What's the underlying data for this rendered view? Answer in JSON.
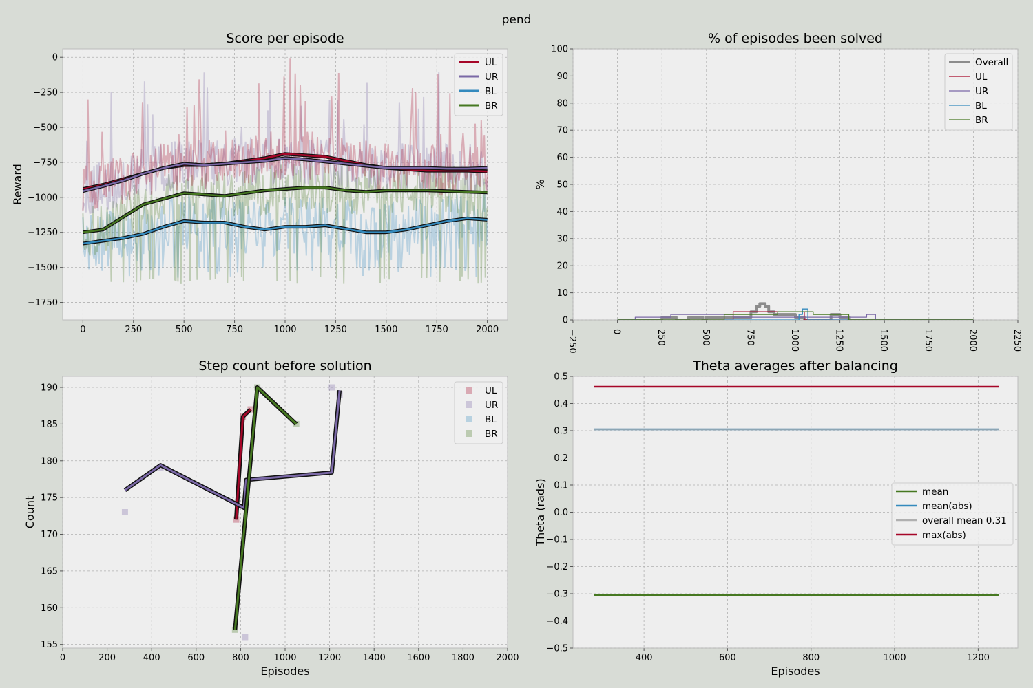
{
  "figure": {
    "suptitle": "pend"
  },
  "colors": {
    "UL": "#a60628",
    "UR": "#7a68a6",
    "BL": "#348abd",
    "BR": "#467821",
    "overall": "#8c8c8c",
    "overall_mean": "#b0b0b0",
    "axes_bg": "#eeeeee",
    "fig_bg": "#d8dcd6",
    "grid": "#b0b0b0"
  },
  "chart_data": [
    {
      "id": "score",
      "type": "line",
      "title": "Score per episode",
      "xlabel": "",
      "ylabel": "Reward",
      "xlim": [
        -100,
        2100
      ],
      "ylim": [
        -1875,
        60
      ],
      "xticks": [
        0,
        250,
        500,
        750,
        1000,
        1250,
        1500,
        1750,
        2000
      ],
      "yticks": [
        0,
        -250,
        -500,
        -750,
        -1000,
        -1250,
        -1500,
        -1750
      ],
      "grid": true,
      "legend": {
        "loc": "upper right",
        "entries": [
          "UL",
          "UR",
          "BL",
          "BR"
        ]
      },
      "series": [
        {
          "name": "UL",
          "x": [
            0,
            100,
            200,
            300,
            400,
            500,
            600,
            700,
            800,
            900,
            1000,
            1100,
            1200,
            1300,
            1400,
            1500,
            1600,
            1700,
            1800,
            1900,
            2000
          ],
          "values": [
            -940,
            -910,
            -870,
            -830,
            -790,
            -770,
            -770,
            -760,
            -740,
            -720,
            -690,
            -700,
            -710,
            -740,
            -770,
            -790,
            -800,
            -810,
            -810,
            -810,
            -815
          ]
        },
        {
          "name": "UR",
          "x": [
            0,
            100,
            200,
            300,
            400,
            500,
            600,
            700,
            800,
            900,
            1000,
            1100,
            1200,
            1300,
            1400,
            1500,
            1600,
            1700,
            1800,
            1900,
            2000
          ],
          "values": [
            -955,
            -920,
            -880,
            -830,
            -790,
            -760,
            -770,
            -760,
            -750,
            -740,
            -720,
            -730,
            -745,
            -760,
            -775,
            -790,
            -790,
            -790,
            -795,
            -795,
            -790
          ]
        },
        {
          "name": "BL",
          "x": [
            0,
            100,
            200,
            300,
            400,
            500,
            600,
            700,
            800,
            900,
            1000,
            1100,
            1200,
            1300,
            1400,
            1500,
            1600,
            1700,
            1800,
            1900,
            2000
          ],
          "values": [
            -1330,
            -1310,
            -1290,
            -1260,
            -1210,
            -1170,
            -1180,
            -1180,
            -1210,
            -1230,
            -1210,
            -1210,
            -1200,
            -1225,
            -1250,
            -1250,
            -1230,
            -1200,
            -1170,
            -1150,
            -1160
          ]
        },
        {
          "name": "BR",
          "x": [
            0,
            100,
            200,
            300,
            400,
            500,
            600,
            700,
            800,
            900,
            1000,
            1100,
            1200,
            1300,
            1400,
            1500,
            1600,
            1700,
            1800,
            1900,
            2000
          ],
          "values": [
            -1250,
            -1230,
            -1140,
            -1050,
            -1010,
            -970,
            -980,
            -990,
            -970,
            -950,
            -940,
            -930,
            -930,
            -950,
            -960,
            -950,
            -950,
            -950,
            -955,
            -960,
            -965
          ]
        }
      ]
    },
    {
      "id": "solved",
      "type": "line",
      "title": "% of episodes been solved",
      "xlabel": "",
      "ylabel": "%",
      "xlim": [
        -250,
        2250
      ],
      "ylim": [
        0,
        100
      ],
      "xticks": [
        -250,
        0,
        250,
        500,
        750,
        1000,
        1250,
        1500,
        1750,
        2000,
        2250
      ],
      "yticks": [
        0,
        10,
        20,
        30,
        40,
        50,
        60,
        70,
        80,
        90,
        100
      ],
      "grid": true,
      "legend": {
        "loc": "upper right",
        "entries": [
          "Overall",
          "UL",
          "UR",
          "BL",
          "BR"
        ]
      },
      "series": [
        {
          "name": "Overall",
          "x": [
            0,
            240,
            250,
            330,
            400,
            480,
            500,
            700,
            750,
            780,
            800,
            830,
            850,
            880,
            900,
            1000,
            1050,
            1200,
            1250,
            1300,
            2000
          ],
          "values": [
            0,
            0,
            1,
            0,
            1,
            0,
            1,
            1,
            3,
            5,
            6,
            5,
            3,
            2,
            2,
            1,
            0,
            2,
            1,
            0,
            0
          ]
        },
        {
          "name": "UL",
          "x": [
            0,
            600,
            650,
            1000,
            1050,
            2000
          ],
          "values": [
            0,
            0,
            3,
            3,
            0,
            0
          ]
        },
        {
          "name": "UR",
          "x": [
            0,
            80,
            100,
            250,
            300,
            600,
            650,
            1400,
            1450,
            2000
          ],
          "values": [
            0,
            0,
            1,
            1,
            2,
            2,
            1,
            2,
            0,
            0
          ]
        },
        {
          "name": "BL",
          "x": [
            0,
            1000,
            1020,
            1040,
            1070,
            2000
          ],
          "values": [
            0,
            0,
            2,
            4,
            0,
            0
          ]
        },
        {
          "name": "BR",
          "x": [
            0,
            580,
            600,
            900,
            1050,
            1100,
            1300,
            2000
          ],
          "values": [
            0,
            0,
            2,
            3,
            3,
            2,
            0,
            0
          ]
        }
      ]
    },
    {
      "id": "steps",
      "type": "line",
      "title": "Step count before solution",
      "xlabel": "Episodes",
      "ylabel": "Count",
      "xlim": [
        0,
        2000
      ],
      "ylim": [
        154.5,
        191.5
      ],
      "xticks": [
        0,
        200,
        400,
        600,
        800,
        1000,
        1200,
        1400,
        1600,
        1800,
        2000
      ],
      "yticks": [
        155,
        160,
        165,
        170,
        175,
        180,
        185,
        190
      ],
      "grid": true,
      "legend": {
        "loc": "upper right",
        "entries": [
          "UL",
          "UR",
          "BL",
          "BR"
        ]
      },
      "series": [
        {
          "name": "UL",
          "x": [
            780,
            810,
            845
          ],
          "values": [
            172,
            186,
            187
          ]
        },
        {
          "name": "UR",
          "x": [
            280,
            440,
            815,
            825,
            1210,
            1245
          ],
          "values": [
            176,
            179.4,
            173.6,
            177.4,
            178.4,
            189.6
          ]
        },
        {
          "name": "BR",
          "x": [
            775,
            875,
            1050
          ],
          "values": [
            157,
            190,
            185
          ]
        }
      ],
      "scatter": [
        {
          "name": "UL",
          "x": [
            780,
            810,
            845
          ],
          "values": [
            172,
            186,
            187
          ]
        },
        {
          "name": "UR",
          "x": [
            280,
            440,
            820,
            1210,
            1245
          ],
          "values": [
            173,
            179,
            156,
            190,
            189
          ]
        },
        {
          "name": "BL",
          "x": [],
          "values": []
        },
        {
          "name": "BR",
          "x": [
            775,
            875,
            1050
          ],
          "values": [
            157,
            190,
            185
          ]
        }
      ]
    },
    {
      "id": "theta",
      "type": "line",
      "title": "Theta averages after balancing",
      "xlabel": "Episodes",
      "ylabel": "Theta (rads)",
      "xlim": [
        230,
        1295
      ],
      "ylim": [
        -0.5,
        0.5
      ],
      "xticks": [
        400,
        600,
        800,
        1000,
        1200
      ],
      "yticks": [
        0.5,
        0.4,
        0.3,
        0.2,
        0.1,
        0.0,
        -0.1,
        -0.2,
        -0.3,
        -0.4,
        -0.5
      ],
      "ytick_labels": [
        "0.5",
        "0.4",
        "0.3",
        "0.2",
        "0.1",
        "0.0",
        "−0.1",
        "−0.2",
        "−0.3",
        "−0.4",
        "−0.5"
      ],
      "grid": true,
      "legend": {
        "loc": "center right",
        "entries": [
          "mean",
          "mean(abs)",
          "overall mean 0.31",
          "max(abs)"
        ]
      },
      "series": [
        {
          "name": "mean",
          "x": [
            280,
            1250
          ],
          "values": [
            -0.305,
            -0.305
          ]
        },
        {
          "name": "mean(abs)",
          "x": [
            280,
            1250
          ],
          "values": [
            0.305,
            0.305
          ]
        },
        {
          "name": "overall mean 0.31",
          "x": [
            280,
            1250
          ],
          "values": [
            0.305,
            0.305
          ]
        },
        {
          "name": "max(abs)",
          "x": [
            280,
            1250
          ],
          "values": [
            0.462,
            0.462
          ]
        }
      ]
    }
  ]
}
